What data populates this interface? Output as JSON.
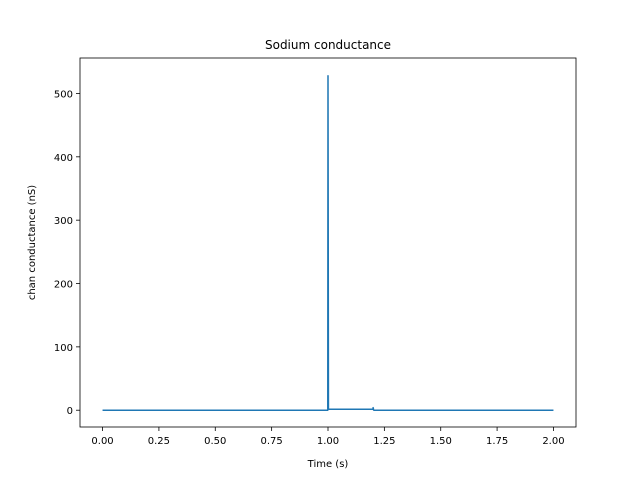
{
  "chart_data": {
    "type": "line",
    "title": "Sodium conductance",
    "xlabel": "Time (s)",
    "ylabel": "chan conductance (nS)",
    "xlim": [
      -0.1,
      2.1
    ],
    "ylim": [
      -26.5,
      556
    ],
    "xticks": [
      0.0,
      0.25,
      0.5,
      0.75,
      1.0,
      1.25,
      1.5,
      1.75,
      2.0
    ],
    "xtick_labels": [
      "0.00",
      "0.25",
      "0.50",
      "0.75",
      "1.00",
      "1.25",
      "1.50",
      "1.75",
      "2.00"
    ],
    "yticks": [
      0,
      100,
      200,
      300,
      400,
      500
    ],
    "ytick_labels": [
      "0",
      "100",
      "200",
      "300",
      "400",
      "500"
    ],
    "grid": false,
    "legend": "none",
    "series": [
      {
        "color": "#1f77b4",
        "x": [
          0.0,
          0.999,
          1.0,
          1.002,
          1.004,
          1.2,
          1.2,
          1.201,
          1.202,
          1.204,
          2.0
        ],
        "y": [
          0,
          0,
          528,
          2,
          1.5,
          1.5,
          4,
          3,
          0.5,
          0,
          0
        ]
      }
    ]
  }
}
